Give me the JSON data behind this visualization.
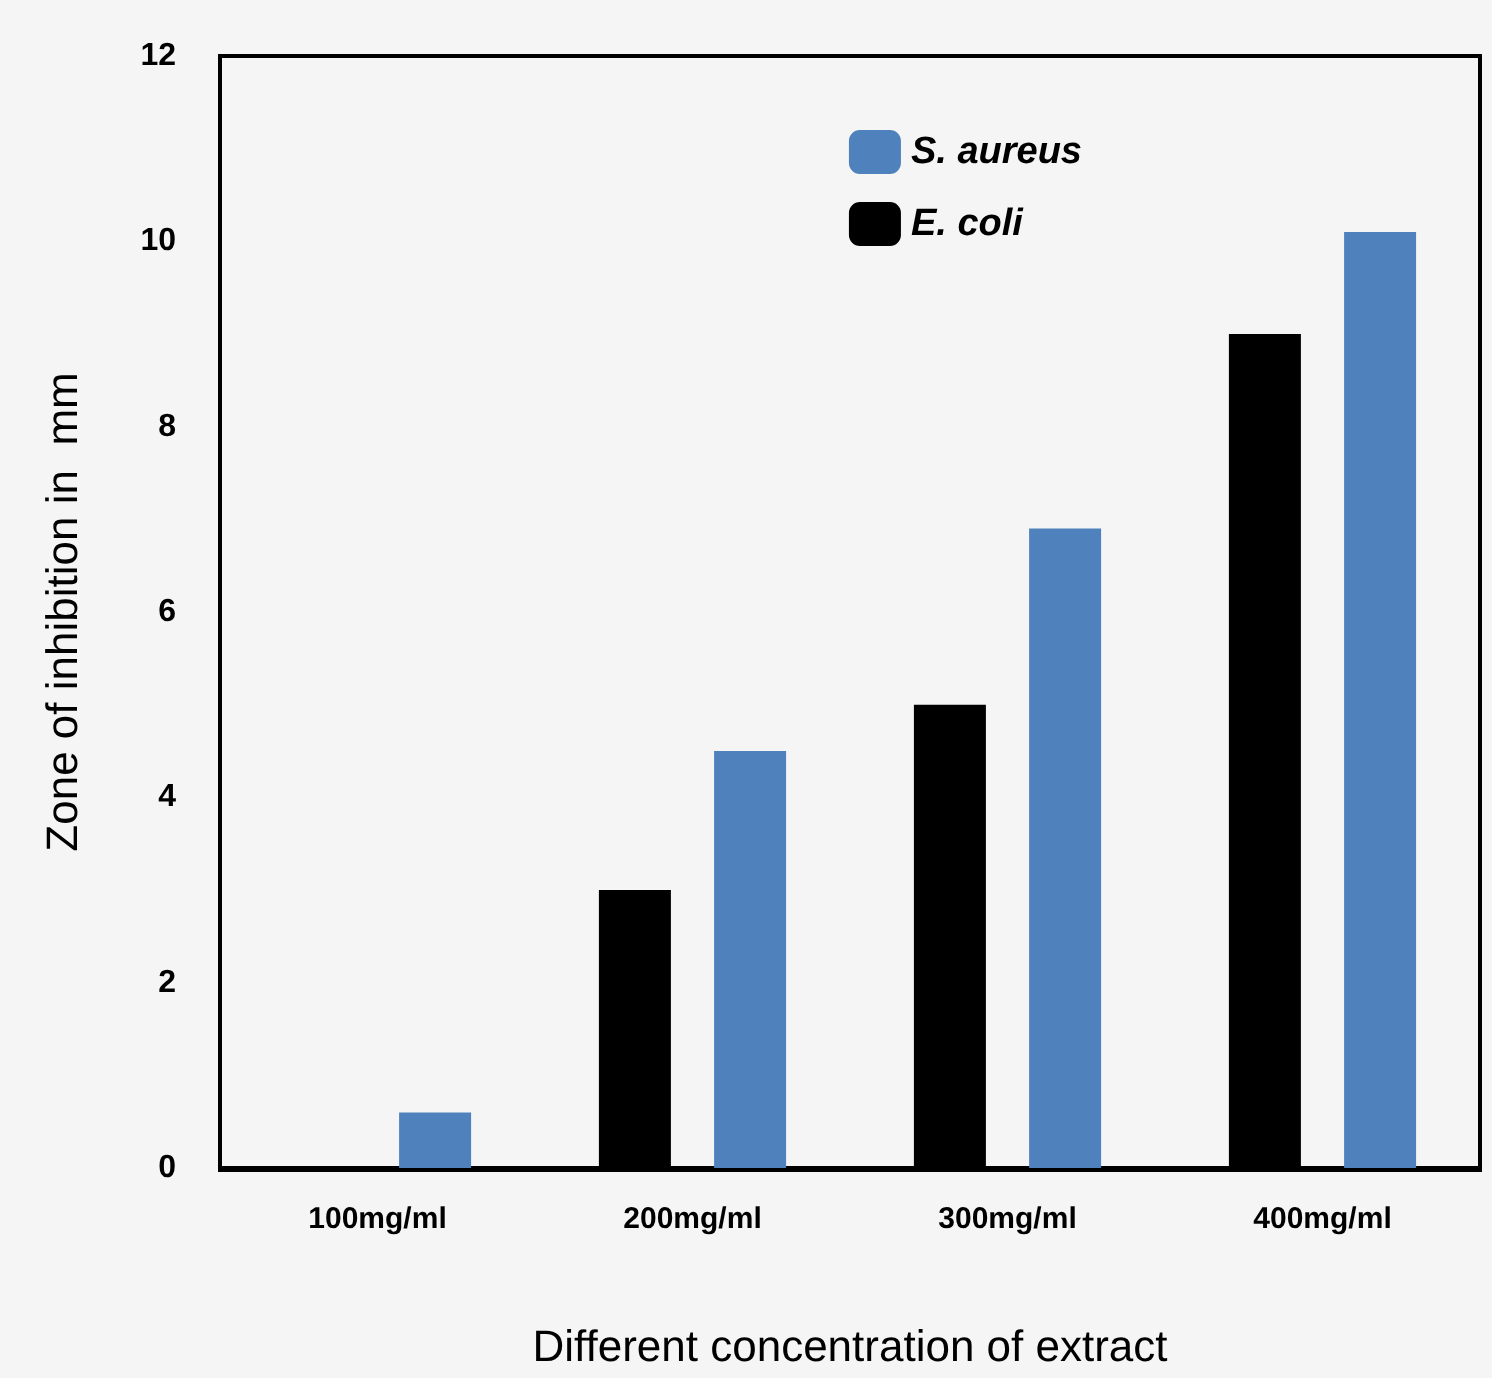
{
  "chart_data": {
    "type": "bar",
    "xlabel": "Different concentration of extract",
    "ylabel": "Zone of inhibition in  mm",
    "categories": [
      "100mg/ml",
      "200mg/ml",
      "300mg/ml",
      "400mg/ml"
    ],
    "series": [
      {
        "name": "E. coli",
        "color": "#000000",
        "values": [
          null,
          3.0,
          5.0,
          9.0
        ]
      },
      {
        "name": "S. aureus",
        "color": "#4f81bd",
        "values": [
          0.6,
          4.5,
          6.9,
          10.1
        ]
      }
    ],
    "ylim": [
      0,
      12
    ],
    "yticks": [
      0,
      2,
      4,
      6,
      8,
      10,
      12
    ],
    "grid": false,
    "legend": "top right"
  }
}
